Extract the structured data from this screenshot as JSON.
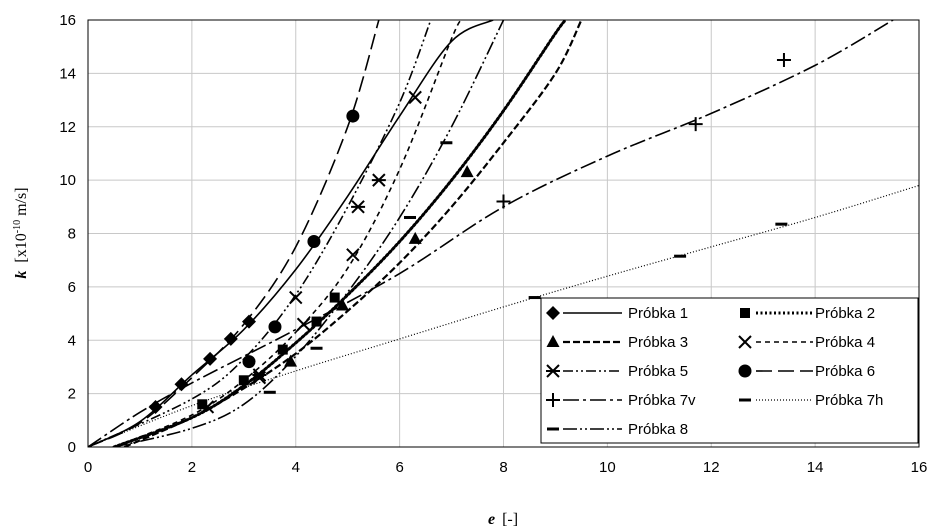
{
  "chart_data": {
    "type": "scatter",
    "xlabel": "e [-]",
    "ylabel": "k [x10-10 m/s]",
    "ylabel_parts": {
      "var": "k",
      "pre": "[x10",
      "sup": "-10",
      "post": " m/s]"
    },
    "xlabel_parts": {
      "var": "e",
      "post": "[-]"
    },
    "xlim": [
      0,
      16
    ],
    "ylim": [
      0,
      16
    ],
    "xticks": [
      "0",
      "2",
      "4",
      "6",
      "8",
      "10",
      "12",
      "14",
      "16"
    ],
    "yticks": [
      "0",
      "2",
      "4",
      "6",
      "8",
      "10",
      "12",
      "14",
      "16"
    ],
    "grid": true,
    "legend_position": "bottom-right",
    "series": [
      {
        "name": "Próbka 1",
        "marker": "diamond",
        "line": "solid",
        "points": [
          [
            1.3,
            1.5
          ],
          [
            1.8,
            2.35
          ],
          [
            2.35,
            3.3
          ],
          [
            2.75,
            4.05
          ],
          [
            3.1,
            4.7
          ]
        ],
        "curve": [
          [
            0,
            0
          ],
          [
            1,
            0.95
          ],
          [
            2,
            2.7
          ],
          [
            3,
            4.4
          ],
          [
            4,
            6.65
          ],
          [
            5,
            9.4
          ],
          [
            6,
            12.4
          ],
          [
            7,
            15.2
          ],
          [
            7.8,
            16
          ]
        ]
      },
      {
        "name": "Próbka 2",
        "marker": "square",
        "line": "dotted",
        "points": [
          [
            2.2,
            1.6
          ],
          [
            3.0,
            2.5
          ],
          [
            3.75,
            3.65
          ],
          [
            4.4,
            4.7
          ],
          [
            4.75,
            5.6
          ]
        ],
        "curve": [
          [
            0.5,
            0
          ],
          [
            2,
            1.1
          ],
          [
            3,
            2.3
          ],
          [
            4,
            3.9
          ],
          [
            5,
            5.7
          ],
          [
            6,
            7.7
          ],
          [
            7,
            10.0
          ],
          [
            8,
            12.6
          ],
          [
            9,
            15.5
          ],
          [
            9.2,
            16
          ]
        ]
      },
      {
        "name": "Próbka 3",
        "marker": "triangle",
        "line": "dashed",
        "points": [
          [
            3.9,
            3.2
          ],
          [
            4.9,
            5.3
          ],
          [
            6.3,
            7.8
          ],
          [
            7.3,
            10.3
          ]
        ],
        "curve": [
          [
            0.7,
            0
          ],
          [
            2,
            1.1
          ],
          [
            3,
            2.2
          ],
          [
            4,
            3.5
          ],
          [
            5,
            5.1
          ],
          [
            6,
            6.9
          ],
          [
            7,
            9.0
          ],
          [
            8,
            11.4
          ],
          [
            9,
            14.0
          ],
          [
            9.5,
            16
          ]
        ]
      },
      {
        "name": "Próbka 4",
        "marker": "x",
        "line": "short-dash",
        "points": [
          [
            2.3,
            1.5
          ],
          [
            3.3,
            2.6
          ],
          [
            4.0,
            5.6
          ],
          [
            4.15,
            4.6
          ],
          [
            5.1,
            7.2
          ],
          [
            6.3,
            13.1
          ]
        ],
        "curve": [
          [
            0.5,
            0
          ],
          [
            2,
            1.2
          ],
          [
            3,
            2.5
          ],
          [
            4,
            4.3
          ],
          [
            5,
            6.7
          ],
          [
            6,
            10.4
          ],
          [
            7,
            15.3
          ],
          [
            7.2,
            16
          ]
        ]
      },
      {
        "name": "Próbka 5",
        "marker": "asterisk",
        "line": "dash-dot-dot",
        "points": [
          [
            3.3,
            2.7
          ],
          [
            5.2,
            9.0
          ],
          [
            5.6,
            10.0
          ]
        ],
        "curve": [
          [
            0,
            0
          ],
          [
            2,
            1.8
          ],
          [
            3,
            3.3
          ],
          [
            4,
            5.7
          ],
          [
            5,
            9.0
          ],
          [
            6,
            12.9
          ],
          [
            6.6,
            16
          ]
        ]
      },
      {
        "name": "Próbka 6",
        "marker": "circle",
        "line": "long-dash",
        "points": [
          [
            3.1,
            3.2
          ],
          [
            3.6,
            4.5
          ],
          [
            4.35,
            7.7
          ],
          [
            5.1,
            12.4
          ]
        ],
        "curve": [
          [
            0,
            0
          ],
          [
            1,
            0.9
          ],
          [
            2,
            2.6
          ],
          [
            3,
            4.6
          ],
          [
            4,
            7.5
          ],
          [
            5,
            12.0
          ],
          [
            5.6,
            16
          ]
        ]
      },
      {
        "name": "Próbka 7v",
        "marker": "plus",
        "line": "long-dash-dot",
        "points": [
          [
            8.0,
            9.2
          ],
          [
            11.7,
            12.1
          ],
          [
            13.4,
            14.5
          ]
        ],
        "curve": [
          [
            0,
            0
          ],
          [
            1,
            1.3
          ],
          [
            2,
            2.4
          ],
          [
            3,
            3.4
          ],
          [
            4,
            4.4
          ],
          [
            6,
            6.5
          ],
          [
            8,
            9.0
          ],
          [
            10,
            10.9
          ],
          [
            12,
            12.5
          ],
          [
            14,
            14.3
          ],
          [
            15.5,
            16
          ]
        ]
      },
      {
        "name": "Próbka 7h",
        "marker": "dash",
        "line": "fine-dotted",
        "points": [
          [
            3.5,
            2.05
          ],
          [
            8.6,
            5.6
          ],
          [
            11.4,
            7.15
          ],
          [
            13.35,
            8.35
          ]
        ],
        "curve": [
          [
            0,
            0
          ],
          [
            2,
            1.55
          ],
          [
            4,
            2.85
          ],
          [
            6,
            4.05
          ],
          [
            8,
            5.25
          ],
          [
            10,
            6.4
          ],
          [
            12,
            7.5
          ],
          [
            14,
            8.6
          ],
          [
            16,
            9.8
          ]
        ]
      },
      {
        "name": "Próbka 8",
        "marker": "dash",
        "line": "long-dash-dot-dot",
        "points": [
          [
            4.4,
            3.7
          ],
          [
            6.2,
            8.6
          ],
          [
            6.9,
            11.4
          ]
        ],
        "curve": [
          [
            0.5,
            0
          ],
          [
            2,
            0.7
          ],
          [
            3,
            1.6
          ],
          [
            4,
            3.4
          ],
          [
            5,
            5.8
          ],
          [
            6,
            8.6
          ],
          [
            7,
            12.0
          ],
          [
            8,
            16
          ]
        ]
      }
    ]
  }
}
